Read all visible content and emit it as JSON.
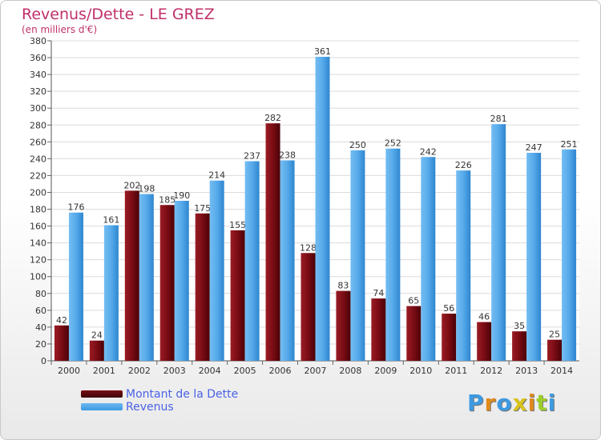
{
  "header": {
    "title": "Revenus/Dette - LE GREZ",
    "subtitle": "(en milliers d'€)"
  },
  "legend": {
    "items": [
      {
        "label": "Montant de la Dette",
        "color": "#7a0c14"
      },
      {
        "label": "Revenus",
        "color": "#3d9ae2"
      }
    ]
  },
  "logo": {
    "text": "Proxiti"
  },
  "chart_data": {
    "type": "bar",
    "title": "Revenus/Dette - LE GREZ",
    "subtitle": "(en milliers d'€)",
    "xlabel": "",
    "ylabel": "",
    "categories": [
      "2000",
      "2001",
      "2002",
      "2003",
      "2004",
      "2005",
      "2006",
      "2007",
      "2008",
      "2009",
      "2010",
      "2011",
      "2012",
      "2013",
      "2014"
    ],
    "series": [
      {
        "name": "Montant de la Dette",
        "color": "#7a0c14",
        "values": [
          42,
          24,
          202,
          185,
          175,
          155,
          282,
          128,
          83,
          74,
          65,
          56,
          46,
          35,
          25
        ]
      },
      {
        "name": "Revenus",
        "color": "#3d9ae2",
        "values": [
          176,
          161,
          198,
          190,
          214,
          237,
          238,
          361,
          250,
          252,
          242,
          226,
          281,
          247,
          251
        ]
      }
    ],
    "ylim": [
      0,
      380
    ],
    "ytick_step": 20,
    "grid": true,
    "legend_position": "bottom-left"
  }
}
